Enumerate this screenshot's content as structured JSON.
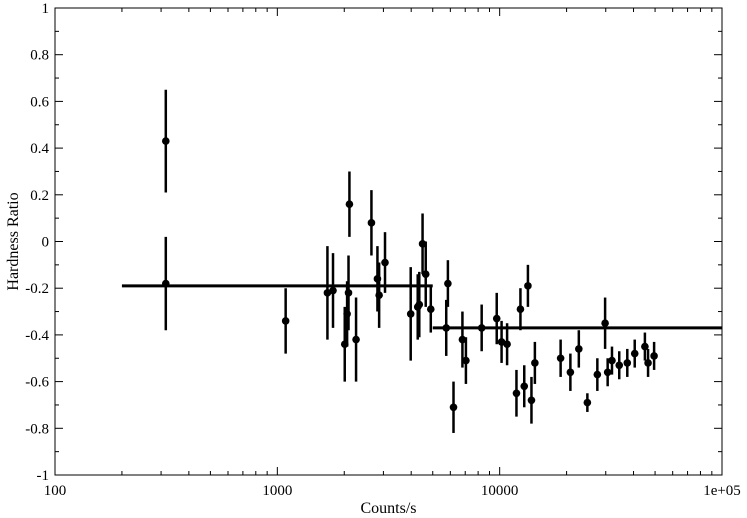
{
  "chart_data": {
    "type": "scatter",
    "title": "",
    "xlabel": "Counts/s",
    "ylabel": "Hardness Ratio",
    "x_scale": "log",
    "xlim": [
      100,
      100000
    ],
    "ylim": [
      -1,
      1
    ],
    "grid": false,
    "x_ticks": [
      {
        "value": 100,
        "label": "100"
      },
      {
        "value": 1000,
        "label": "1000"
      },
      {
        "value": 10000,
        "label": "10000"
      },
      {
        "value": 100000,
        "label": "1e+05"
      }
    ],
    "y_ticks": [
      {
        "value": -1,
        "label": "-1"
      },
      {
        "value": -0.8,
        "label": "-0.8"
      },
      {
        "value": -0.6,
        "label": "-0.6"
      },
      {
        "value": -0.4,
        "label": "-0.4"
      },
      {
        "value": -0.2,
        "label": "-0.2"
      },
      {
        "value": 0,
        "label": "0"
      },
      {
        "value": 0.2,
        "label": "0.2"
      },
      {
        "value": 0.4,
        "label": "0.4"
      },
      {
        "value": 0.6,
        "label": "0.6"
      },
      {
        "value": 0.8,
        "label": "0.8"
      },
      {
        "value": 1,
        "label": "1"
      }
    ],
    "points": [
      {
        "x": 315,
        "y": 0.43,
        "err": 0.22
      },
      {
        "x": 315,
        "y": -0.18,
        "err": 0.2
      },
      {
        "x": 1090,
        "y": -0.34,
        "err": 0.14
      },
      {
        "x": 1680,
        "y": -0.22,
        "err": 0.2
      },
      {
        "x": 1780,
        "y": -0.21,
        "err": 0.16
      },
      {
        "x": 2010,
        "y": -0.44,
        "err": 0.16
      },
      {
        "x": 2060,
        "y": -0.31,
        "err": 0.14
      },
      {
        "x": 2090,
        "y": -0.22,
        "err": 0.16
      },
      {
        "x": 2110,
        "y": 0.16,
        "err": 0.14
      },
      {
        "x": 2260,
        "y": -0.42,
        "err": 0.18
      },
      {
        "x": 2650,
        "y": 0.08,
        "err": 0.14
      },
      {
        "x": 2820,
        "y": -0.16,
        "err": 0.14
      },
      {
        "x": 2870,
        "y": -0.23,
        "err": 0.14
      },
      {
        "x": 3050,
        "y": -0.09,
        "err": 0.13
      },
      {
        "x": 3980,
        "y": -0.31,
        "err": 0.2
      },
      {
        "x": 4280,
        "y": -0.28,
        "err": 0.14
      },
      {
        "x": 4350,
        "y": -0.27,
        "err": 0.14
      },
      {
        "x": 4500,
        "y": -0.01,
        "err": 0.13
      },
      {
        "x": 4650,
        "y": -0.14,
        "err": 0.14
      },
      {
        "x": 4900,
        "y": -0.29,
        "err": 0.1
      },
      {
        "x": 5750,
        "y": -0.37,
        "err": 0.12
      },
      {
        "x": 5850,
        "y": -0.18,
        "err": 0.1
      },
      {
        "x": 6200,
        "y": -0.71,
        "err": 0.11
      },
      {
        "x": 6800,
        "y": -0.42,
        "err": 0.12
      },
      {
        "x": 7050,
        "y": -0.51,
        "err": 0.1
      },
      {
        "x": 8300,
        "y": -0.37,
        "err": 0.1
      },
      {
        "x": 9700,
        "y": -0.33,
        "err": 0.11
      },
      {
        "x": 10200,
        "y": -0.43,
        "err": 0.09
      },
      {
        "x": 10800,
        "y": -0.44,
        "err": 0.09
      },
      {
        "x": 11900,
        "y": -0.65,
        "err": 0.1
      },
      {
        "x": 12400,
        "y": -0.29,
        "err": 0.09
      },
      {
        "x": 12900,
        "y": -0.62,
        "err": 0.09
      },
      {
        "x": 13400,
        "y": -0.19,
        "err": 0.09
      },
      {
        "x": 13900,
        "y": -0.68,
        "err": 0.1
      },
      {
        "x": 14400,
        "y": -0.52,
        "err": 0.09
      },
      {
        "x": 18800,
        "y": -0.5,
        "err": 0.08
      },
      {
        "x": 20800,
        "y": -0.56,
        "err": 0.08
      },
      {
        "x": 22700,
        "y": -0.46,
        "err": 0.08
      },
      {
        "x": 24800,
        "y": -0.69,
        "err": 0.04
      },
      {
        "x": 27500,
        "y": -0.57,
        "err": 0.07
      },
      {
        "x": 29800,
        "y": -0.35,
        "err": 0.11
      },
      {
        "x": 30600,
        "y": -0.56,
        "err": 0.06
      },
      {
        "x": 32000,
        "y": -0.51,
        "err": 0.06
      },
      {
        "x": 34500,
        "y": -0.53,
        "err": 0.06
      },
      {
        "x": 37500,
        "y": -0.52,
        "err": 0.06
      },
      {
        "x": 40500,
        "y": -0.48,
        "err": 0.06
      },
      {
        "x": 45000,
        "y": -0.45,
        "err": 0.06
      },
      {
        "x": 46500,
        "y": -0.52,
        "err": 0.06
      },
      {
        "x": 49500,
        "y": -0.49,
        "err": 0.06
      }
    ],
    "fit_lines": [
      {
        "x": [
          200,
          5000
        ],
        "y": -0.19
      },
      {
        "x": [
          5000,
          100000
        ],
        "y": -0.37
      }
    ]
  }
}
